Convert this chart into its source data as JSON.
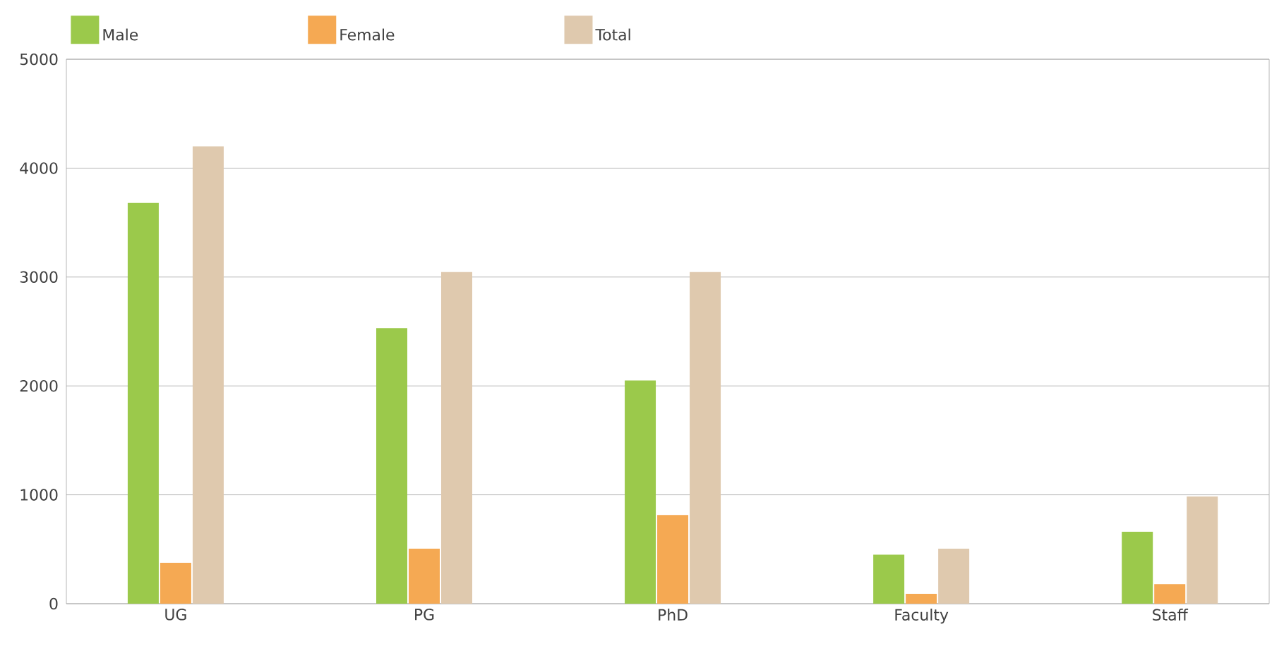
{
  "chart_data": {
    "type": "bar",
    "categories": [
      "UG",
      "PG",
      "PhD",
      "Faculty",
      "Staff"
    ],
    "series": [
      {
        "name": "Male",
        "color": "#9bc94b",
        "values": [
          3680,
          2530,
          2050,
          450,
          660
        ]
      },
      {
        "name": "Female",
        "color": "#f5a953",
        "values": [
          375,
          505,
          815,
          90,
          180
        ]
      },
      {
        "name": "Total",
        "color": "#dfc9ae",
        "values": [
          4200,
          3045,
          3045,
          505,
          985
        ]
      }
    ],
    "ylim": [
      0,
      5000
    ],
    "yticks": [
      0,
      1000,
      2000,
      3000,
      4000,
      5000
    ],
    "grid": "y",
    "legend": "top left"
  }
}
